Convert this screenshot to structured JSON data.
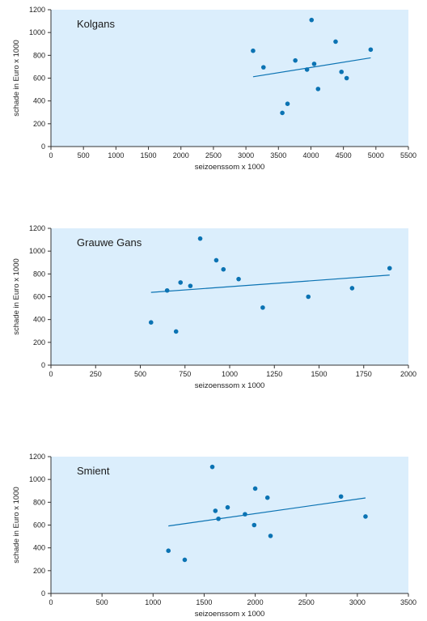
{
  "colors": {
    "plot_bg": "#dbeefc",
    "point": "#0b73b3",
    "trend": "#0b73b3",
    "axis": "#333333"
  },
  "chart_data": [
    {
      "type": "scatter",
      "title": "Kolgans",
      "xlabel": "seizoenssom x 1000",
      "ylabel": "schade in Euro x 1000",
      "xlim": [
        0,
        5500
      ],
      "ylim": [
        0,
        1200
      ],
      "xticks": [
        "0",
        "500",
        "1000",
        "1500",
        "2000",
        "2500",
        "3000",
        "3500",
        "4000",
        "4500",
        "5000",
        "5500"
      ],
      "yticks": [
        "0",
        "200",
        "400",
        "600",
        "800",
        "1000",
        "1200"
      ],
      "points": [
        {
          "x": 3110,
          "y": 840
        },
        {
          "x": 3270,
          "y": 695
        },
        {
          "x": 3560,
          "y": 295
        },
        {
          "x": 3640,
          "y": 375
        },
        {
          "x": 3760,
          "y": 755
        },
        {
          "x": 3940,
          "y": 675
        },
        {
          "x": 4010,
          "y": 1110
        },
        {
          "x": 4050,
          "y": 725
        },
        {
          "x": 4110,
          "y": 505
        },
        {
          "x": 4380,
          "y": 920
        },
        {
          "x": 4470,
          "y": 655
        },
        {
          "x": 4550,
          "y": 600
        },
        {
          "x": 4920,
          "y": 850
        }
      ],
      "trendline": [
        {
          "x": 3110,
          "y": 612
        },
        {
          "x": 4920,
          "y": 778
        }
      ]
    },
    {
      "type": "scatter",
      "title": "Grauwe Gans",
      "xlabel": "seizoenssom x 1000",
      "ylabel": "schade in Euro x 1000",
      "xlim": [
        0,
        2000
      ],
      "ylim": [
        0,
        1200
      ],
      "xticks": [
        "0",
        "250",
        "500",
        "750",
        "1000",
        "1250",
        "1500",
        "1750",
        "2000"
      ],
      "yticks": [
        "0",
        "200",
        "400",
        "600",
        "800",
        "1000",
        "1200"
      ],
      "points": [
        {
          "x": 560,
          "y": 375
        },
        {
          "x": 650,
          "y": 655
        },
        {
          "x": 700,
          "y": 295
        },
        {
          "x": 725,
          "y": 725
        },
        {
          "x": 780,
          "y": 695
        },
        {
          "x": 835,
          "y": 1110
        },
        {
          "x": 925,
          "y": 920
        },
        {
          "x": 965,
          "y": 840
        },
        {
          "x": 1050,
          "y": 755
        },
        {
          "x": 1185,
          "y": 505
        },
        {
          "x": 1440,
          "y": 600
        },
        {
          "x": 1685,
          "y": 675
        },
        {
          "x": 1895,
          "y": 850
        }
      ],
      "trendline": [
        {
          "x": 560,
          "y": 638
        },
        {
          "x": 1895,
          "y": 790
        }
      ]
    },
    {
      "type": "scatter",
      "title": "Smient",
      "xlabel": "seizoenssom x 1000",
      "ylabel": "schade in Euro x 1000",
      "xlim": [
        0,
        3500
      ],
      "ylim": [
        0,
        1200
      ],
      "xticks": [
        "0",
        "500",
        "1000",
        "1500",
        "2000",
        "2500",
        "3000",
        "3500"
      ],
      "yticks": [
        "0",
        "200",
        "400",
        "600",
        "800",
        "1000",
        "1200"
      ],
      "points": [
        {
          "x": 1150,
          "y": 375
        },
        {
          "x": 1310,
          "y": 295
        },
        {
          "x": 1580,
          "y": 1110
        },
        {
          "x": 1610,
          "y": 725
        },
        {
          "x": 1640,
          "y": 655
        },
        {
          "x": 1730,
          "y": 755
        },
        {
          "x": 1900,
          "y": 695
        },
        {
          "x": 1990,
          "y": 600
        },
        {
          "x": 2000,
          "y": 920
        },
        {
          "x": 2120,
          "y": 840
        },
        {
          "x": 2150,
          "y": 505
        },
        {
          "x": 2840,
          "y": 850
        },
        {
          "x": 3080,
          "y": 675
        }
      ],
      "trendline": [
        {
          "x": 1150,
          "y": 592
        },
        {
          "x": 3080,
          "y": 838
        }
      ]
    }
  ]
}
